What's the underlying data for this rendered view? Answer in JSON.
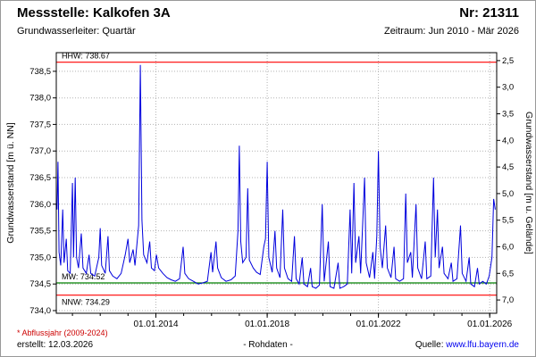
{
  "header": {
    "station_label": "Messstelle: Kalkofen 3A",
    "number_label": "Nr: 21311",
    "aquifer_label": "Grundwasserleiter: Quartär",
    "period_label": "Zeitraum: Jun 2010 - Mär 2026"
  },
  "footer": {
    "note": "* Abflussjahr (2009-2024)",
    "created": "erstellt:  12.03.2026",
    "center": "- Rohdaten -",
    "source_label": "Quelle: ",
    "source_link": "www.lfu.bayern.de"
  },
  "chart_data": {
    "type": "line",
    "title": "Messstelle: Kalkofen 3A",
    "ylabel_left": "Grundwasserstand [m ü. NN]",
    "ylabel_right": "Grundwasserstand [m u. Gelände]",
    "x_tick_labels": [
      "01.01.2014",
      "01.01.2018",
      "01.01.2022",
      "01.01.2026"
    ],
    "x_tick_years": [
      2014,
      2018,
      2022,
      2026
    ],
    "x_minor_tick_years": [
      2011,
      2012,
      2013,
      2014,
      2015,
      2016,
      2017,
      2018,
      2019,
      2020,
      2021,
      2022,
      2023,
      2024,
      2025,
      2026
    ],
    "x_range": [
      2010.42,
      2026.25
    ],
    "y_left_ticks": [
      734.0,
      734.5,
      735.0,
      735.5,
      736.0,
      736.5,
      737.0,
      737.5,
      738.0,
      738.5
    ],
    "y_left_range": [
      733.95,
      738.85
    ],
    "y_right_ticks": [
      2.5,
      3.0,
      3.5,
      4.0,
      4.5,
      5.0,
      5.5,
      6.0,
      6.5,
      7.0
    ],
    "ground_level_elevation": 741.2,
    "grid_color": "#b4b4b4",
    "reference_lines": [
      {
        "name": "HHW",
        "label": "HHW: 738.67",
        "value": 738.67,
        "color": "#ff0000",
        "label_below": false
      },
      {
        "name": "MW",
        "label": "MW: 734.52",
        "value": 734.52,
        "color": "#008000",
        "label_below": false
      },
      {
        "name": "NNW",
        "label": "NNW: 734.29",
        "value": 734.29,
        "color": "#ff0000",
        "label_below": true
      }
    ],
    "series": [
      {
        "name": "Rohdaten",
        "color": "#0000dd",
        "points": [
          [
            2010.45,
            735.9
          ],
          [
            2010.48,
            736.8
          ],
          [
            2010.52,
            735.1
          ],
          [
            2010.58,
            734.85
          ],
          [
            2010.65,
            735.9
          ],
          [
            2010.7,
            734.9
          ],
          [
            2010.78,
            735.35
          ],
          [
            2010.83,
            734.75
          ],
          [
            2010.92,
            734.7
          ],
          [
            2011.0,
            736.4
          ],
          [
            2011.04,
            735.0
          ],
          [
            2011.1,
            736.5
          ],
          [
            2011.15,
            735.0
          ],
          [
            2011.22,
            734.8
          ],
          [
            2011.32,
            735.45
          ],
          [
            2011.38,
            734.8
          ],
          [
            2011.5,
            734.7
          ],
          [
            2011.6,
            735.05
          ],
          [
            2011.66,
            734.7
          ],
          [
            2011.8,
            734.65
          ],
          [
            2011.95,
            735.0
          ],
          [
            2012.0,
            735.55
          ],
          [
            2012.05,
            734.85
          ],
          [
            2012.18,
            734.7
          ],
          [
            2012.28,
            735.4
          ],
          [
            2012.33,
            734.75
          ],
          [
            2012.45,
            734.65
          ],
          [
            2012.6,
            734.6
          ],
          [
            2012.75,
            734.7
          ],
          [
            2012.9,
            735.05
          ],
          [
            2013.0,
            735.35
          ],
          [
            2013.06,
            734.9
          ],
          [
            2013.18,
            735.15
          ],
          [
            2013.25,
            734.85
          ],
          [
            2013.38,
            735.6
          ],
          [
            2013.44,
            738.62
          ],
          [
            2013.5,
            735.7
          ],
          [
            2013.56,
            735.05
          ],
          [
            2013.68,
            734.9
          ],
          [
            2013.78,
            735.3
          ],
          [
            2013.84,
            734.8
          ],
          [
            2013.95,
            734.75
          ],
          [
            2014.02,
            735.05
          ],
          [
            2014.1,
            734.8
          ],
          [
            2014.25,
            734.7
          ],
          [
            2014.4,
            734.62
          ],
          [
            2014.55,
            734.58
          ],
          [
            2014.7,
            734.55
          ],
          [
            2014.85,
            734.6
          ],
          [
            2014.98,
            735.2
          ],
          [
            2015.04,
            734.7
          ],
          [
            2015.18,
            734.6
          ],
          [
            2015.35,
            734.55
          ],
          [
            2015.52,
            734.5
          ],
          [
            2015.68,
            734.52
          ],
          [
            2015.85,
            734.55
          ],
          [
            2015.98,
            735.1
          ],
          [
            2016.04,
            734.72
          ],
          [
            2016.16,
            735.3
          ],
          [
            2016.22,
            734.8
          ],
          [
            2016.35,
            734.62
          ],
          [
            2016.52,
            734.55
          ],
          [
            2016.7,
            734.58
          ],
          [
            2016.85,
            734.65
          ],
          [
            2016.95,
            735.5
          ],
          [
            2017.0,
            737.1
          ],
          [
            2017.05,
            735.3
          ],
          [
            2017.12,
            734.9
          ],
          [
            2017.24,
            735.0
          ],
          [
            2017.3,
            736.3
          ],
          [
            2017.36,
            734.95
          ],
          [
            2017.5,
            734.8
          ],
          [
            2017.62,
            734.72
          ],
          [
            2017.75,
            734.68
          ],
          [
            2017.88,
            735.2
          ],
          [
            2017.94,
            735.35
          ],
          [
            2018.0,
            736.8
          ],
          [
            2018.06,
            735.0
          ],
          [
            2018.18,
            734.72
          ],
          [
            2018.28,
            735.5
          ],
          [
            2018.34,
            734.8
          ],
          [
            2018.46,
            734.62
          ],
          [
            2018.56,
            735.9
          ],
          [
            2018.62,
            734.8
          ],
          [
            2018.75,
            734.6
          ],
          [
            2018.88,
            734.55
          ],
          [
            2018.98,
            735.4
          ],
          [
            2019.04,
            734.6
          ],
          [
            2019.15,
            734.5
          ],
          [
            2019.26,
            735.0
          ],
          [
            2019.32,
            734.5
          ],
          [
            2019.45,
            734.45
          ],
          [
            2019.56,
            734.8
          ],
          [
            2019.62,
            734.45
          ],
          [
            2019.75,
            734.42
          ],
          [
            2019.88,
            734.48
          ],
          [
            2019.98,
            736.0
          ],
          [
            2020.05,
            734.55
          ],
          [
            2020.2,
            735.3
          ],
          [
            2020.26,
            734.45
          ],
          [
            2020.4,
            734.42
          ],
          [
            2020.55,
            734.9
          ],
          [
            2020.61,
            734.42
          ],
          [
            2020.75,
            734.45
          ],
          [
            2020.88,
            734.5
          ],
          [
            2020.98,
            735.9
          ],
          [
            2021.04,
            734.7
          ],
          [
            2021.12,
            736.4
          ],
          [
            2021.18,
            734.9
          ],
          [
            2021.3,
            735.4
          ],
          [
            2021.36,
            734.7
          ],
          [
            2021.5,
            736.5
          ],
          [
            2021.56,
            734.9
          ],
          [
            2021.68,
            734.62
          ],
          [
            2021.8,
            735.1
          ],
          [
            2021.86,
            734.6
          ],
          [
            2021.94,
            735.4
          ],
          [
            2022.0,
            737.0
          ],
          [
            2022.06,
            735.2
          ],
          [
            2022.14,
            734.8
          ],
          [
            2022.26,
            735.6
          ],
          [
            2022.32,
            734.8
          ],
          [
            2022.45,
            734.62
          ],
          [
            2022.56,
            735.2
          ],
          [
            2022.62,
            734.6
          ],
          [
            2022.76,
            734.55
          ],
          [
            2022.9,
            734.6
          ],
          [
            2022.98,
            736.2
          ],
          [
            2023.04,
            734.9
          ],
          [
            2023.16,
            735.1
          ],
          [
            2023.22,
            734.62
          ],
          [
            2023.35,
            736.0
          ],
          [
            2023.41,
            734.8
          ],
          [
            2023.55,
            734.6
          ],
          [
            2023.68,
            735.3
          ],
          [
            2023.74,
            734.6
          ],
          [
            2023.88,
            734.65
          ],
          [
            2023.98,
            736.5
          ],
          [
            2024.04,
            735.0
          ],
          [
            2024.12,
            735.9
          ],
          [
            2024.18,
            734.8
          ],
          [
            2024.3,
            735.2
          ],
          [
            2024.36,
            734.7
          ],
          [
            2024.5,
            734.6
          ],
          [
            2024.62,
            734.9
          ],
          [
            2024.68,
            734.55
          ],
          [
            2024.82,
            734.6
          ],
          [
            2024.95,
            735.6
          ],
          [
            2025.01,
            734.7
          ],
          [
            2025.15,
            734.55
          ],
          [
            2025.26,
            735.0
          ],
          [
            2025.32,
            734.5
          ],
          [
            2025.45,
            734.45
          ],
          [
            2025.56,
            734.8
          ],
          [
            2025.62,
            734.5
          ],
          [
            2025.75,
            734.55
          ],
          [
            2025.88,
            734.5
          ],
          [
            2025.98,
            734.65
          ],
          [
            2026.08,
            735.0
          ],
          [
            2026.14,
            736.1
          ],
          [
            2026.2,
            735.9
          ]
        ]
      }
    ]
  }
}
